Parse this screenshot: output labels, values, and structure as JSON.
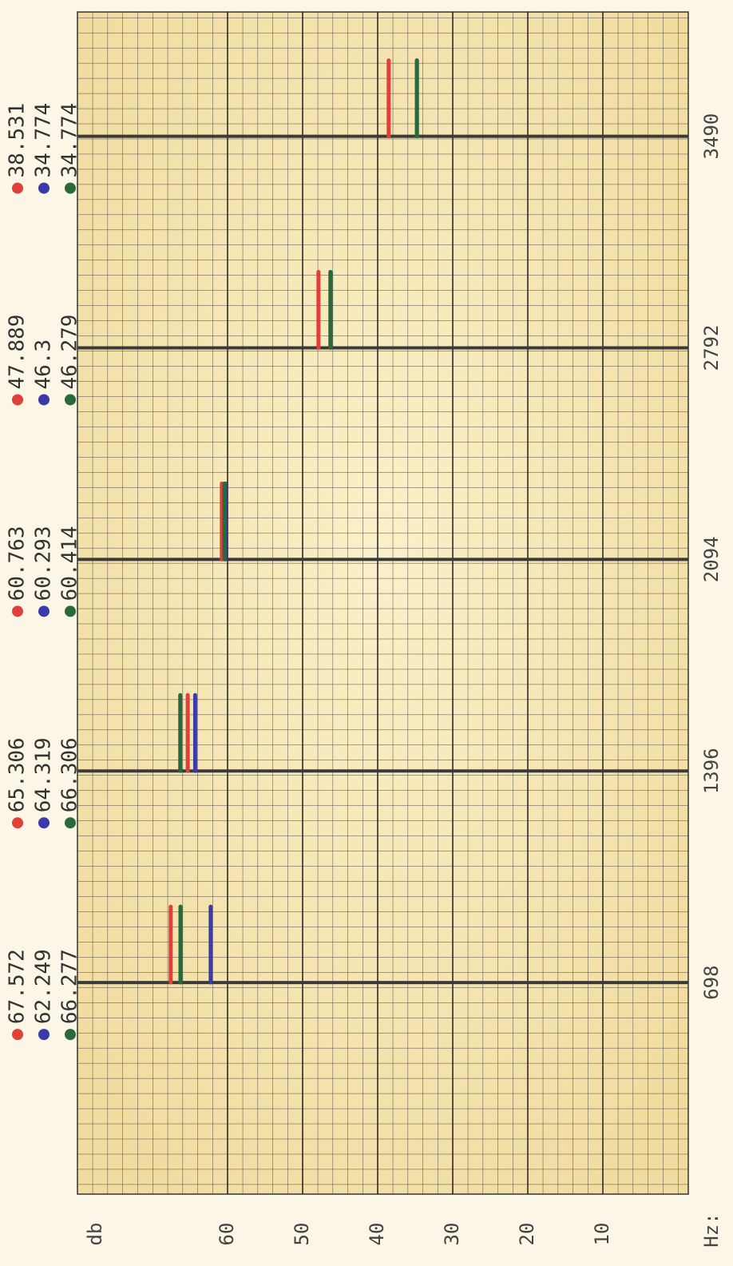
{
  "chart_data": {
    "type": "bar",
    "y_label": "db",
    "x_label": "Hz:",
    "x": [
      698,
      1396,
      2094,
      2792,
      3490
    ],
    "xlim": [
      0,
      3900
    ],
    "xticks": [
      698,
      1396,
      2094,
      2792,
      3490
    ],
    "ylim": [
      0,
      80
    ],
    "yticks": [
      10,
      20,
      30,
      40,
      50,
      60
    ],
    "grid": true,
    "series": [
      {
        "color": "#e0403a",
        "values": [
          67.572,
          65.306,
          60.763,
          47.889,
          38.531
        ]
      },
      {
        "color": "#3a3aa8",
        "values": [
          62.249,
          64.319,
          60.293,
          46.3,
          34.774
        ]
      },
      {
        "color": "#2a6a3a",
        "values": [
          66.277,
          66.306,
          60.414,
          46.279,
          34.774
        ]
      }
    ]
  }
}
